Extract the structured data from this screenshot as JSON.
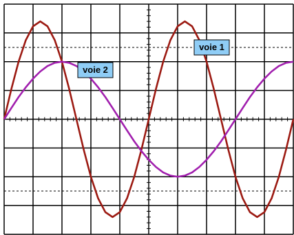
{
  "chart_data": {
    "type": "line",
    "x": [
      0,
      0.25,
      0.5,
      0.75,
      1,
      1.25,
      1.5,
      1.75,
      2,
      2.25,
      2.5,
      2.75,
      3,
      3.25,
      3.5,
      3.75,
      4,
      4.25,
      4.5,
      4.75,
      5,
      5.25,
      5.5,
      5.75,
      6,
      6.25,
      6.5,
      6.75,
      7,
      7.25,
      7.5,
      7.75,
      8,
      8.25,
      8.5,
      8.75,
      9,
      9.25,
      9.5,
      9.75,
      10
    ],
    "series": [
      {
        "name": "voie 1",
        "color": "#9c1a12",
        "values": [
          0,
          1.05,
          2.0,
          2.75,
          3.23,
          3.4,
          3.23,
          2.75,
          2.0,
          1.05,
          0,
          -1.05,
          -2.0,
          -2.75,
          -3.23,
          -3.4,
          -3.23,
          -2.75,
          -2.0,
          -1.05,
          0,
          1.05,
          2.0,
          2.75,
          3.23,
          3.4,
          3.23,
          2.75,
          2.0,
          1.05,
          0,
          -1.05,
          -2.0,
          -2.75,
          -3.23,
          -3.4,
          -3.23,
          -2.75,
          -2.0,
          -1.05,
          0
        ]
      },
      {
        "name": "voie 2",
        "color": "#a11fae",
        "values": [
          0,
          0.39,
          0.77,
          1.11,
          1.41,
          1.66,
          1.85,
          1.96,
          2,
          1.96,
          1.85,
          1.66,
          1.41,
          1.11,
          0.77,
          0.39,
          0,
          -0.39,
          -0.77,
          -1.11,
          -1.41,
          -1.66,
          -1.85,
          -1.96,
          -2,
          -1.96,
          -1.85,
          -1.66,
          -1.41,
          -1.11,
          -0.77,
          -0.39,
          0,
          0.39,
          0.77,
          1.11,
          1.41,
          1.66,
          1.85,
          1.96,
          2
        ]
      }
    ],
    "xlim": [
      0,
      10
    ],
    "ylim": [
      -4,
      4
    ],
    "xticks": [
      0,
      1,
      2,
      3,
      4,
      5,
      6,
      7,
      8,
      9,
      10
    ],
    "yticks": [
      -4,
      -3,
      -2,
      -1,
      0,
      1,
      2,
      3,
      4
    ],
    "grid": true
  }
}
